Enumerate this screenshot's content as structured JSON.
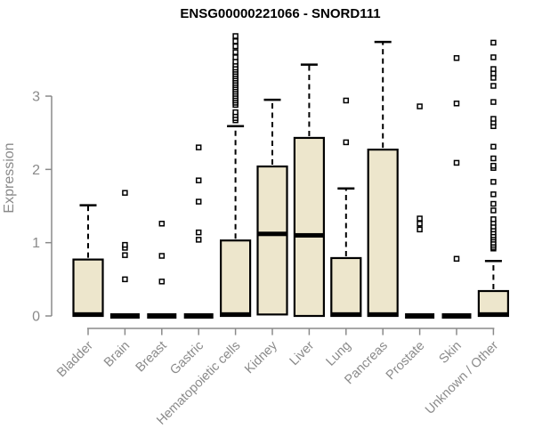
{
  "chart_data": {
    "type": "boxplot",
    "title": "ENSG00000221066 - SNORD111",
    "ylabel": "Expression",
    "xlabel": "",
    "yticks": [
      0,
      1,
      2,
      3
    ],
    "ylim": [
      0,
      3.9
    ],
    "grid": false,
    "legend": "none",
    "colors": {
      "box_fill": "#EDE6CC",
      "box_border": "#000000",
      "axis": "#8A8A8A",
      "title": "#000000"
    },
    "categories": [
      "Bladder",
      "Brain",
      "Breast",
      "Gastric",
      "Hematopoietic cells",
      "Kidney",
      "Liver",
      "Lung",
      "Pancreas",
      "Prostate",
      "Skin",
      "Unknown / Other"
    ],
    "boxes": [
      {
        "category": "Bladder",
        "q1": 0,
        "median": 0.02,
        "q3": 0.77,
        "whisker_low": 0,
        "whisker_high": 1.51,
        "outliers": []
      },
      {
        "category": "Brain",
        "q1": 0,
        "median": 0,
        "q3": 0,
        "whisker_low": 0,
        "whisker_high": 0,
        "outliers": [
          0.5,
          0.83,
          0.93,
          0.97,
          1.68
        ]
      },
      {
        "category": "Breast",
        "q1": 0,
        "median": 0,
        "q3": 0,
        "whisker_low": 0,
        "whisker_high": 0,
        "outliers": [
          0.47,
          0.82,
          1.26
        ]
      },
      {
        "category": "Gastric",
        "q1": 0,
        "median": 0,
        "q3": 0,
        "whisker_low": 0,
        "whisker_high": 0,
        "outliers": [
          1.04,
          1.14,
          1.56,
          1.85,
          2.3
        ]
      },
      {
        "category": "Hematopoietic cells",
        "q1": 0,
        "median": 0.02,
        "q3": 1.03,
        "whisker_low": 0,
        "whisker_high": 2.59,
        "outliers": [
          2.67,
          2.7,
          2.74,
          2.78,
          2.88,
          2.91,
          2.94,
          2.97,
          3.0,
          3.03,
          3.06,
          3.09,
          3.12,
          3.15,
          3.18,
          3.21,
          3.24,
          3.27,
          3.3,
          3.33,
          3.36,
          3.39,
          3.43,
          3.47,
          3.53,
          3.6,
          3.68,
          3.75,
          3.82
        ]
      },
      {
        "category": "Kidney",
        "q1": 0.02,
        "median": 1.12,
        "q3": 2.04,
        "whisker_low": 0.02,
        "whisker_high": 2.95,
        "outliers": []
      },
      {
        "category": "Liver",
        "q1": 0,
        "median": 1.1,
        "q3": 2.43,
        "whisker_low": 0,
        "whisker_high": 3.43,
        "outliers": []
      },
      {
        "category": "Lung",
        "q1": 0,
        "median": 0.02,
        "q3": 0.79,
        "whisker_low": 0,
        "whisker_high": 1.74,
        "outliers": [
          2.37,
          2.94
        ]
      },
      {
        "category": "Pancreas",
        "q1": 0,
        "median": 0.02,
        "q3": 2.27,
        "whisker_low": 0,
        "whisker_high": 3.74,
        "outliers": []
      },
      {
        "category": "Prostate",
        "q1": 0,
        "median": 0,
        "q3": 0,
        "whisker_low": 0,
        "whisker_high": 0,
        "outliers": [
          1.18,
          1.26,
          1.33,
          2.86
        ]
      },
      {
        "category": "Skin",
        "q1": 0,
        "median": 0,
        "q3": 0,
        "whisker_low": 0,
        "whisker_high": 0,
        "outliers": [
          0.78,
          2.09,
          2.9,
          3.52
        ]
      },
      {
        "category": "Unknown / Other",
        "q1": 0,
        "median": 0.02,
        "q3": 0.34,
        "whisker_low": 0,
        "whisker_high": 0.75,
        "outliers": [
          0.92,
          0.94,
          0.97,
          1.0,
          1.04,
          1.07,
          1.1,
          1.14,
          1.18,
          1.22,
          1.27,
          1.32,
          1.44,
          1.53,
          1.66,
          1.83,
          2.02,
          2.05,
          2.15,
          2.31,
          2.59,
          2.64,
          2.69,
          2.92,
          3.14,
          3.25,
          3.31,
          3.37,
          3.53,
          3.73
        ]
      }
    ]
  }
}
